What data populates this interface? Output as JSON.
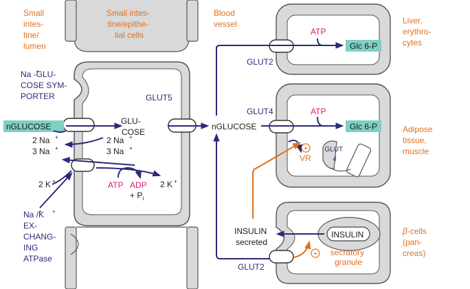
{
  "colors": {
    "tissue_fill": "#d9d9d9",
    "outline": "#555555",
    "arrow_navy": "#2a2a78",
    "arrow_orange": "#e07020",
    "label_orange": "#e07020",
    "label_navy": "#2a2a78",
    "label_magenta": "#d8176b",
    "box_teal": "#7fcfc4"
  },
  "labels": {
    "lumen": [
      "Small",
      "intes-",
      "tine/",
      "lumen"
    ],
    "epithelial": [
      "Small intes-",
      "tine/epithe-",
      "lial cells"
    ],
    "blood": [
      "Blood",
      "vessel"
    ],
    "liver": [
      "Liver,",
      "erythro-",
      "cytes"
    ],
    "adipose": [
      "Adipose",
      "tissue,",
      "muscle"
    ],
    "beta": [
      "-cells",
      "(pan-",
      "creas)"
    ],
    "beta_symbol": "β",
    "symporter": [
      "Na -GLU-",
      "COSE SYM-",
      "PORTER"
    ],
    "symporter_sup": "+",
    "atpase": [
      "Na /K",
      "EX-",
      "CHANG-",
      "ING",
      "ATPase"
    ],
    "atpase_sup": "+",
    "glut5": "GLUT5",
    "glut2_top": "GLUT2",
    "glut4": "GLUT4",
    "glut2_bottom": "GLUT2",
    "nglucose_lumen": "nGLUCOSE",
    "glucose_cell": [
      "GLU-",
      "COSE"
    ],
    "nglucose_blood": "nGLUCOSE",
    "na_left": [
      "2 Na",
      "3 Na"
    ],
    "na_right": [
      "2 Na",
      "3 Na"
    ],
    "k_left": "2 K",
    "k_right": "2 K",
    "plus": "+",
    "atp_cell": "ATP",
    "adp": "ADP",
    "pi": "+ P",
    "pi_sub": "i",
    "atp_liver": "ATP",
    "glc6p_liver": "Glc 6-P",
    "atp_adipose": "ATP",
    "glc6p_adipose": "Glc 6-P",
    "glut4_vesicle": [
      "GLUT",
      "4"
    ],
    "vr": "VR",
    "plus_circle": "+",
    "insulin_secreted": [
      "INSULIN",
      "secreted"
    ],
    "insulin_granule": "INSULIN",
    "secretory": [
      "secratory",
      "granule"
    ]
  }
}
